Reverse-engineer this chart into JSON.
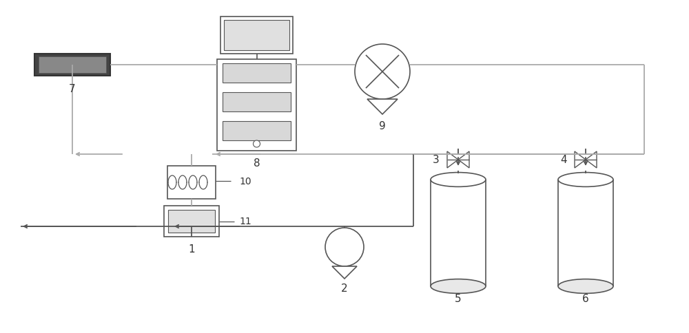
{
  "bg": "#ffffff",
  "lc": "#aaaaaa",
  "dc": "#555555",
  "lw": 1.3,
  "dlw": 1.3,
  "lfs": 11,
  "lcol": "#333333",
  "fig_w": 10.0,
  "fig_h": 4.85
}
